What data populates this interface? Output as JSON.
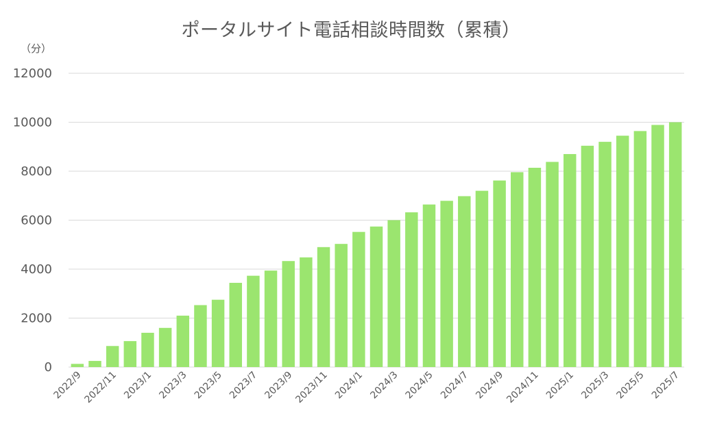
{
  "chart_data": {
    "type": "bar",
    "title": "ポータルサイト電話相談時間数（累積）",
    "unit_label": "（分）",
    "color": "#9be56f",
    "ylim": [
      0,
      12000
    ],
    "yticks": [
      0,
      2000,
      4000,
      6000,
      8000,
      10000,
      12000
    ],
    "grid": true,
    "categories": [
      "2022/9",
      "2022/10",
      "2022/11",
      "2022/12",
      "2023/1",
      "2023/2",
      "2023/3",
      "2023/4",
      "2023/5",
      "2023/6",
      "2023/7",
      "2023/8",
      "2023/9",
      "2023/10",
      "2023/11",
      "2023/12",
      "2024/1",
      "2024/2",
      "2024/3",
      "2024/4",
      "2024/5",
      "2024/6",
      "2024/7",
      "2024/8",
      "2024/9",
      "2024/10",
      "2024/11",
      "2024/12",
      "2025/1",
      "2025/2",
      "2025/3",
      "2025/4",
      "2025/5",
      "2025/6",
      "2025/7"
    ],
    "xtick_labels": [
      "2022/9",
      "2022/11",
      "2023/1",
      "2023/3",
      "2023/5",
      "2023/7",
      "2023/9",
      "2023/11",
      "2024/1",
      "2024/3",
      "2024/5",
      "2024/7",
      "2024/9",
      "2024/11",
      "2025/1",
      "2025/3",
      "2025/5",
      "2025/7"
    ],
    "values": [
      130,
      250,
      860,
      1060,
      1400,
      1600,
      2100,
      2530,
      2750,
      3440,
      3730,
      3940,
      4330,
      4480,
      4900,
      5030,
      5520,
      5740,
      6000,
      6320,
      6640,
      6790,
      6980,
      7200,
      7620,
      7960,
      8140,
      8380,
      8700,
      9040,
      9200,
      9450,
      9640,
      9890,
      10000
    ]
  }
}
